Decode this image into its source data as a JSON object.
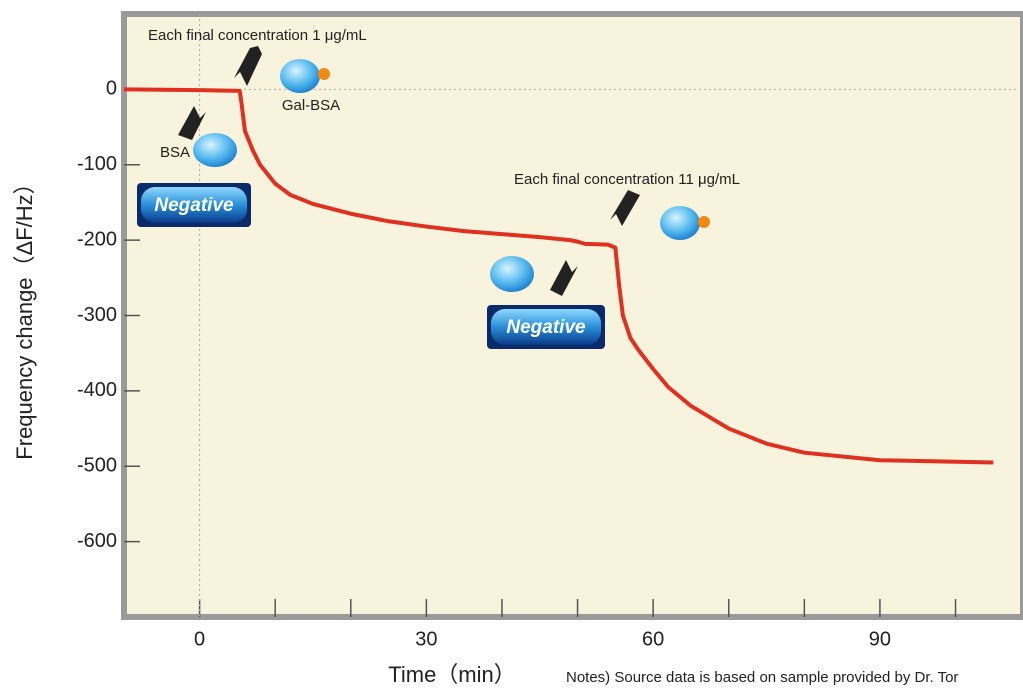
{
  "chart_data": {
    "type": "line",
    "x_label": "Time（min）",
    "y_label": "Frequency change（ΔF/Hz）",
    "xlim": [
      -10,
      108
    ],
    "ylim": [
      -700,
      100
    ],
    "xticks": [
      0,
      30,
      60,
      90
    ],
    "xminor_ticks": [
      10,
      20,
      40,
      50,
      70,
      80,
      100
    ],
    "yticks": [
      0,
      -100,
      -200,
      -300,
      -400,
      -500,
      -600
    ],
    "color": "#e03020",
    "x": [
      -10,
      0,
      5.3,
      5.5,
      6,
      7,
      8,
      10,
      12,
      15,
      20,
      25,
      30,
      35,
      40,
      45,
      49,
      50,
      51,
      54,
      55,
      55.5,
      56,
      57,
      58,
      60,
      62,
      65,
      70,
      75,
      80,
      90,
      105
    ],
    "values": [
      0,
      -1,
      -2,
      -15,
      -55,
      -80,
      -100,
      -125,
      -140,
      -152,
      -165,
      -175,
      -182,
      -188,
      -192,
      -196,
      -200,
      -202,
      -205,
      -206,
      -210,
      -260,
      -300,
      -330,
      -345,
      -371,
      -395,
      -420,
      -450,
      -470,
      -482,
      -492,
      -495
    ],
    "annotations": {
      "conc1": "Each final concentration 1 μg/mL",
      "gal_bsa": "Gal-BSA",
      "bsa": "BSA",
      "negative1": "Negative",
      "conc2": "Each final concentration 11 μg/mL",
      "negative2": "Negative",
      "notes": "Notes) Source data is based on sample provided by Dr. Tor"
    }
  }
}
